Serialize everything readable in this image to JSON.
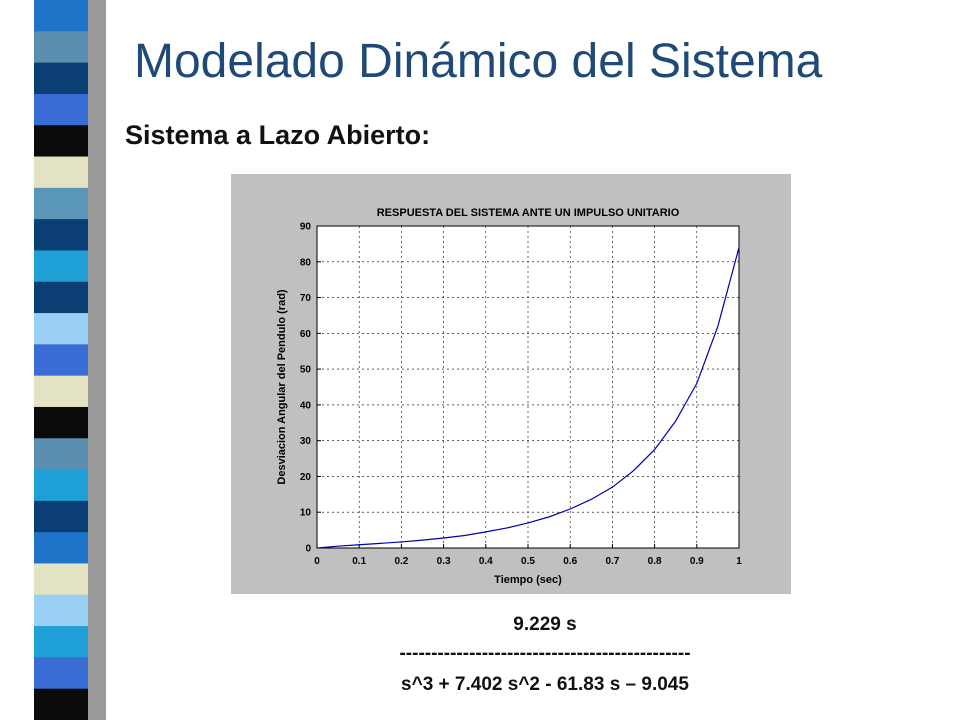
{
  "slide": {
    "title": "Modelado Dinámico del Sistema",
    "subtitle": "Sistema a Lazo Abierto:"
  },
  "decoration": {
    "strip_colors": [
      "#1e74c8",
      "#5a8fb0",
      "#0b3f73",
      "#3a6cd6",
      "#0b0b0b",
      "#e3e3c3",
      "#5a96b8",
      "#0b3f73",
      "#1ea0d6",
      "#0b3f73",
      "#9ad0f5",
      "#3a6cd6",
      "#e3e3c3",
      "#0b0b0b",
      "#5a8fb0",
      "#1ea0d6",
      "#0b3f73",
      "#1e74c8",
      "#e3e3c3",
      "#9ad0f5",
      "#1ea0d6",
      "#3a6cd6",
      "#0b0b0b"
    ],
    "shadow_color": "#9a9a9a"
  },
  "chart_data": {
    "type": "line",
    "title": "RESPUESTA DEL SISTEMA ANTE UN IMPULSO UNITARIO",
    "xlabel": "Tiempo (sec)",
    "ylabel": "Desviacion Angular del Pendulo (rad)",
    "xlim": [
      0,
      1
    ],
    "ylim": [
      0,
      90
    ],
    "x_ticks": [
      "0",
      "0.1",
      "0.2",
      "0.3",
      "0.4",
      "0.5",
      "0.6",
      "0.7",
      "0.8",
      "0.9",
      "1"
    ],
    "y_ticks": [
      "0",
      "10",
      "20",
      "30",
      "40",
      "50",
      "60",
      "70",
      "80",
      "90"
    ],
    "grid": true,
    "line_color": "#0000b0",
    "panel_color": "#c0c0c0",
    "series": [
      {
        "x": [
          0,
          0.05,
          0.1,
          0.15,
          0.2,
          0.25,
          0.3,
          0.35,
          0.4,
          0.45,
          0.5,
          0.55,
          0.6,
          0.65,
          0.7,
          0.75,
          0.8,
          0.85,
          0.9,
          0.95,
          1.0
        ],
        "values": [
          0,
          0.5,
          0.9,
          1.3,
          1.7,
          2.2,
          2.8,
          3.5,
          4.5,
          5.6,
          7.0,
          8.7,
          10.9,
          13.6,
          17.0,
          21.6,
          27.5,
          35.5,
          46.0,
          62.0,
          84.0
        ]
      }
    ]
  },
  "transfer_function": {
    "numerator": "9.229 s",
    "divider": "----------------------------------------------",
    "denominator": "s^3 + 7.402 s^2 - 61.83 s – 9.045"
  }
}
